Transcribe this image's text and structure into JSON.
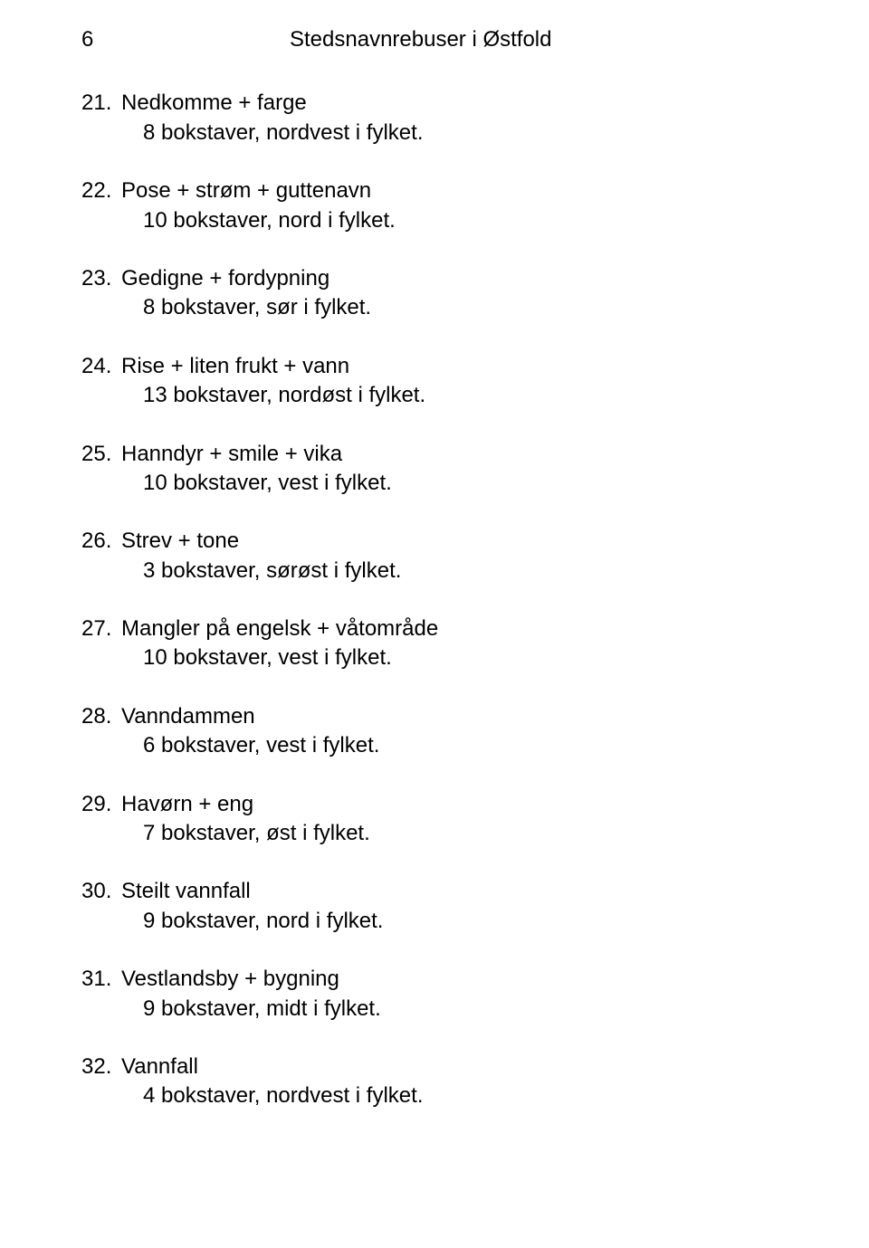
{
  "page_number": "6",
  "header_title": "Stedsnavnrebuser i Østfold",
  "text_color": "#000000",
  "background_color": "#ffffff",
  "font_size_pt": 18,
  "entries": [
    {
      "num": "21.",
      "clue": "Nedkomme + farge",
      "hint": "8 bokstaver, nordvest i fylket."
    },
    {
      "num": "22.",
      "clue": "Pose + strøm + guttenavn",
      "hint": "10 bokstaver, nord i fylket."
    },
    {
      "num": "23.",
      "clue": "Gedigne + fordypning",
      "hint": "8 bokstaver, sør i fylket."
    },
    {
      "num": "24.",
      "clue": "Rise + liten frukt + vann",
      "hint": "13 bokstaver, nordøst i fylket."
    },
    {
      "num": "25.",
      "clue": "Hanndyr + smile + vika",
      "hint": "10 bokstaver, vest i fylket."
    },
    {
      "num": "26.",
      "clue": "Strev + tone",
      "hint": "3 bokstaver, sørøst i fylket."
    },
    {
      "num": "27.",
      "clue": "Mangler på engelsk + våtområde",
      "hint": "10 bokstaver, vest i fylket."
    },
    {
      "num": "28.",
      "clue": "Vanndammen",
      "hint": "6 bokstaver, vest i fylket."
    },
    {
      "num": "29.",
      "clue": "Havørn + eng",
      "hint": "7 bokstaver, øst i fylket."
    },
    {
      "num": "30.",
      "clue": "Steilt vannfall",
      "hint": "9 bokstaver, nord i fylket."
    },
    {
      "num": "31.",
      "clue": "Vestlandsby + bygning",
      "hint": "9 bokstaver, midt i fylket."
    },
    {
      "num": "32.",
      "clue": "Vannfall",
      "hint": "4 bokstaver, nordvest i fylket."
    }
  ]
}
